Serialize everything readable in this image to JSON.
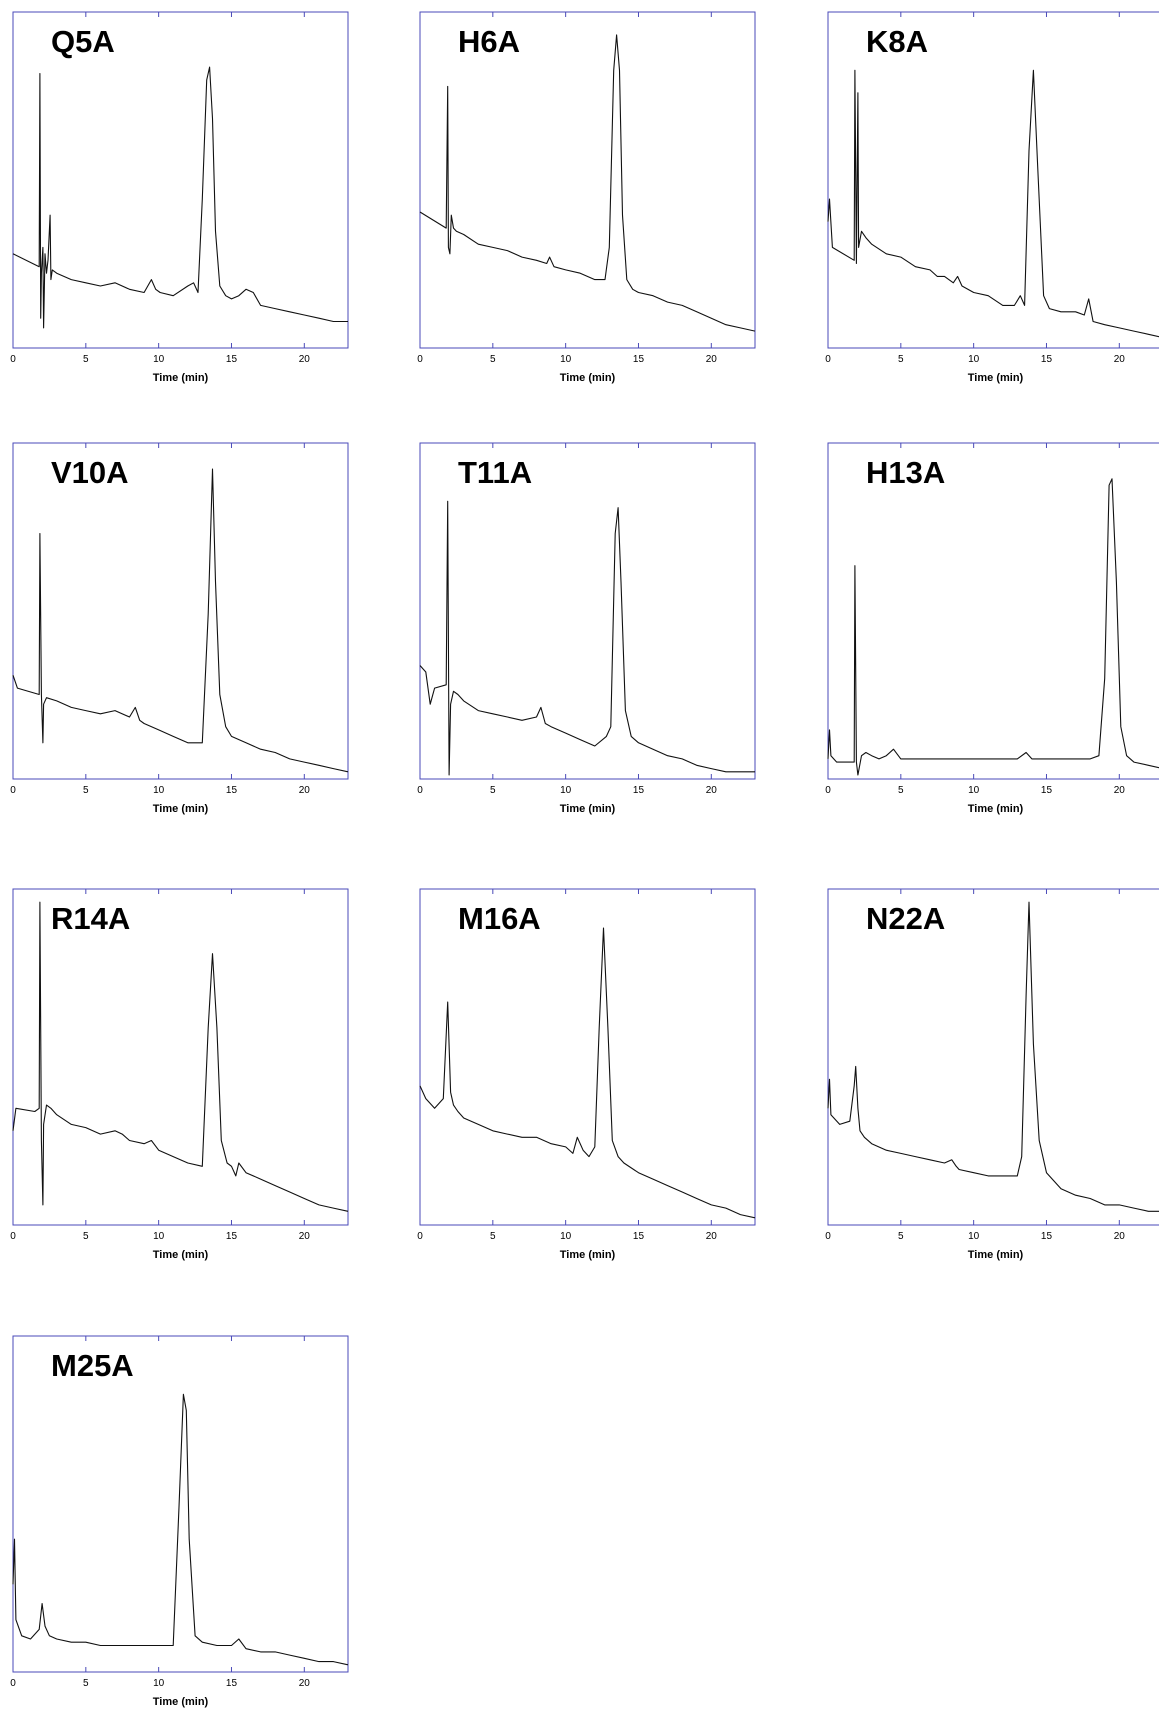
{
  "chart_data": [
    {
      "type": "line",
      "label": "Q5A",
      "xlabel": "Time (min)",
      "xlim": [
        0,
        23
      ],
      "xticks": [
        "0",
        "5",
        "10",
        "15",
        "20"
      ],
      "ylim": [
        0,
        1
      ],
      "series": [
        {
          "x": [
            0,
            1.8,
            1.85,
            1.9,
            1.95,
            2.05,
            2.1,
            2.2,
            2.3,
            2.4,
            2.55,
            2.6,
            2.7,
            3,
            4,
            5,
            6,
            7,
            8,
            9,
            9.5,
            9.8,
            10.1,
            11,
            12,
            12.4,
            12.7,
            13,
            13.3,
            13.5,
            13.7,
            13.9,
            14.2,
            14.6,
            15,
            15.5,
            16,
            16.5,
            17,
            18,
            19,
            20,
            21,
            22,
            23
          ],
          "y": [
            0.28,
            0.24,
            0.84,
            0.08,
            0.22,
            0.3,
            0.05,
            0.28,
            0.22,
            0.26,
            0.4,
            0.2,
            0.23,
            0.22,
            0.2,
            0.19,
            0.18,
            0.19,
            0.17,
            0.16,
            0.2,
            0.17,
            0.16,
            0.15,
            0.18,
            0.19,
            0.16,
            0.45,
            0.82,
            0.86,
            0.7,
            0.35,
            0.18,
            0.15,
            0.14,
            0.15,
            0.17,
            0.16,
            0.12,
            0.11,
            0.1,
            0.09,
            0.08,
            0.07,
            0.07
          ]
        }
      ]
    },
    {
      "type": "line",
      "label": "H6A",
      "xlabel": "Time (min)",
      "xlim": [
        0,
        23
      ],
      "xticks": [
        "0",
        "5",
        "10",
        "15",
        "20"
      ],
      "ylim": [
        0,
        1
      ],
      "series": [
        {
          "x": [
            0,
            1.8,
            1.9,
            1.95,
            2.05,
            2.15,
            2.3,
            2.5,
            3,
            4,
            5,
            6,
            7,
            8,
            8.7,
            8.9,
            9.2,
            10,
            11,
            12,
            12.7,
            13,
            13.3,
            13.5,
            13.7,
            13.9,
            14.2,
            14.6,
            15,
            16,
            17,
            18,
            19,
            20,
            21,
            22,
            23
          ],
          "y": [
            0.41,
            0.36,
            0.8,
            0.3,
            0.28,
            0.4,
            0.36,
            0.35,
            0.34,
            0.31,
            0.3,
            0.29,
            0.27,
            0.26,
            0.25,
            0.27,
            0.24,
            0.23,
            0.22,
            0.2,
            0.2,
            0.3,
            0.85,
            0.96,
            0.85,
            0.4,
            0.2,
            0.17,
            0.16,
            0.15,
            0.13,
            0.12,
            0.1,
            0.08,
            0.06,
            0.05,
            0.04
          ]
        }
      ]
    },
    {
      "type": "line",
      "label": "K8A",
      "xlabel": "Time (min)",
      "xlim": [
        0,
        23
      ],
      "xticks": [
        "0",
        "5",
        "10",
        "15",
        "20"
      ],
      "ylim": [
        0,
        1
      ],
      "series": [
        {
          "x": [
            0,
            0.1,
            0.3,
            1.8,
            1.85,
            1.95,
            2.05,
            2.1,
            2.3,
            2.6,
            3,
            4,
            5,
            6,
            7,
            7.5,
            8,
            8.6,
            8.9,
            9.2,
            10,
            11,
            12,
            12.8,
            13.2,
            13.5,
            13.8,
            14.1,
            14.4,
            14.8,
            15.2,
            16,
            17,
            17.6,
            17.9,
            18.2,
            19,
            20,
            21,
            22,
            23
          ],
          "y": [
            0.38,
            0.45,
            0.3,
            0.26,
            0.85,
            0.25,
            0.78,
            0.3,
            0.35,
            0.33,
            0.31,
            0.28,
            0.27,
            0.24,
            0.23,
            0.21,
            0.21,
            0.19,
            0.21,
            0.18,
            0.16,
            0.15,
            0.12,
            0.12,
            0.15,
            0.12,
            0.6,
            0.85,
            0.55,
            0.15,
            0.11,
            0.1,
            0.1,
            0.09,
            0.14,
            0.07,
            0.06,
            0.05,
            0.04,
            0.03,
            0.02
          ]
        }
      ]
    },
    {
      "type": "line",
      "label": "V10A",
      "xlabel": "Time (min)",
      "xlim": [
        0,
        23
      ],
      "xticks": [
        "0",
        "5",
        "10",
        "15",
        "20"
      ],
      "ylim": [
        0,
        1
      ],
      "series": [
        {
          "x": [
            0,
            0.3,
            1.8,
            1.85,
            1.95,
            2.05,
            2.1,
            2.3,
            3,
            4,
            5,
            6,
            7,
            8,
            8.4,
            8.7,
            9,
            10,
            11,
            12,
            13,
            13.4,
            13.7,
            13.9,
            14.2,
            14.6,
            15,
            16,
            17,
            18,
            19,
            20,
            21,
            22,
            23
          ],
          "y": [
            0.31,
            0.27,
            0.25,
            0.75,
            0.25,
            0.1,
            0.22,
            0.24,
            0.23,
            0.21,
            0.2,
            0.19,
            0.2,
            0.18,
            0.21,
            0.17,
            0.16,
            0.14,
            0.12,
            0.1,
            0.1,
            0.5,
            0.95,
            0.6,
            0.25,
            0.15,
            0.12,
            0.1,
            0.08,
            0.07,
            0.05,
            0.04,
            0.03,
            0.02,
            0.01
          ]
        }
      ]
    },
    {
      "type": "line",
      "label": "T11A",
      "xlabel": "Time (min)",
      "xlim": [
        0,
        23
      ],
      "xticks": [
        "0",
        "5",
        "10",
        "15",
        "20"
      ],
      "ylim": [
        0,
        1
      ],
      "series": [
        {
          "x": [
            0,
            0.4,
            0.7,
            1,
            1.8,
            1.9,
            2,
            2.1,
            2.3,
            2.6,
            3,
            4,
            5,
            6,
            7,
            8,
            8.3,
            8.6,
            9,
            10,
            11,
            12,
            12.8,
            13.1,
            13.4,
            13.6,
            13.8,
            14.1,
            14.5,
            15,
            16,
            17,
            18,
            19,
            20,
            21,
            22,
            23
          ],
          "y": [
            0.34,
            0.32,
            0.22,
            0.27,
            0.28,
            0.85,
            0.0,
            0.22,
            0.26,
            0.25,
            0.23,
            0.2,
            0.19,
            0.18,
            0.17,
            0.18,
            0.21,
            0.16,
            0.15,
            0.13,
            0.11,
            0.09,
            0.12,
            0.15,
            0.75,
            0.83,
            0.6,
            0.2,
            0.12,
            0.1,
            0.08,
            0.06,
            0.05,
            0.03,
            0.02,
            0.01,
            0.01,
            0.01
          ]
        }
      ]
    },
    {
      "type": "line",
      "label": "H13A",
      "xlabel": "Time (min)",
      "xlim": [
        0,
        23
      ],
      "xticks": [
        "0",
        "5",
        "10",
        "15",
        "20"
      ],
      "ylim": [
        0,
        1
      ],
      "series": [
        {
          "x": [
            0,
            0.1,
            0.2,
            0.6,
            1,
            1.8,
            1.85,
            1.95,
            2.05,
            2.3,
            2.6,
            3,
            3.5,
            4,
            4.5,
            5,
            6,
            7,
            8,
            9,
            10,
            11,
            12,
            13,
            13.6,
            14,
            15,
            16,
            17,
            18,
            18.6,
            19,
            19.3,
            19.5,
            19.8,
            20.1,
            20.5,
            21,
            22,
            23
          ],
          "y": [
            0.05,
            0.14,
            0.06,
            0.04,
            0.04,
            0.04,
            0.65,
            0.04,
            0.0,
            0.06,
            0.07,
            0.06,
            0.05,
            0.06,
            0.08,
            0.05,
            0.05,
            0.05,
            0.05,
            0.05,
            0.05,
            0.05,
            0.05,
            0.05,
            0.07,
            0.05,
            0.05,
            0.05,
            0.05,
            0.05,
            0.06,
            0.3,
            0.9,
            0.92,
            0.6,
            0.15,
            0.06,
            0.04,
            0.03,
            0.02
          ]
        }
      ]
    },
    {
      "type": "line",
      "label": "R14A",
      "xlabel": "Time (min)",
      "xlim": [
        0,
        23
      ],
      "xticks": [
        "0",
        "5",
        "10",
        "15",
        "20"
      ],
      "ylim": [
        0,
        1
      ],
      "series": [
        {
          "x": [
            0,
            0.2,
            1.5,
            1.8,
            1.85,
            1.95,
            2.05,
            2.1,
            2.3,
            2.6,
            3,
            4,
            5,
            6,
            7,
            7.5,
            8,
            9,
            9.5,
            10,
            11,
            12,
            13,
            13.4,
            13.7,
            14,
            14.3,
            14.7,
            15,
            15.3,
            15.5,
            16,
            17,
            18,
            19,
            20,
            21,
            22,
            23
          ],
          "y": [
            0.28,
            0.35,
            0.34,
            0.35,
            0.99,
            0.25,
            0.05,
            0.3,
            0.36,
            0.35,
            0.33,
            0.3,
            0.29,
            0.27,
            0.28,
            0.27,
            0.25,
            0.24,
            0.25,
            0.22,
            0.2,
            0.18,
            0.17,
            0.6,
            0.83,
            0.6,
            0.25,
            0.18,
            0.17,
            0.14,
            0.18,
            0.15,
            0.13,
            0.11,
            0.09,
            0.07,
            0.05,
            0.04,
            0.03
          ]
        }
      ]
    },
    {
      "type": "line",
      "label": "M16A",
      "xlabel": "Time (min)",
      "xlim": [
        0,
        23
      ],
      "xticks": [
        "0",
        "5",
        "10",
        "15",
        "20"
      ],
      "ylim": [
        0,
        1
      ],
      "series": [
        {
          "x": [
            0,
            0.4,
            1,
            1.6,
            1.9,
            2.1,
            2.3,
            2.6,
            3,
            4,
            5,
            6,
            7,
            8,
            9,
            10,
            10.5,
            10.8,
            11.2,
            11.6,
            12,
            12.3,
            12.6,
            12.9,
            13.2,
            13.6,
            14,
            15,
            16,
            17,
            18,
            19,
            20,
            21,
            22,
            23
          ],
          "y": [
            0.42,
            0.38,
            0.35,
            0.38,
            0.68,
            0.4,
            0.36,
            0.34,
            0.32,
            0.3,
            0.28,
            0.27,
            0.26,
            0.26,
            0.24,
            0.23,
            0.21,
            0.26,
            0.22,
            0.2,
            0.23,
            0.6,
            0.91,
            0.6,
            0.25,
            0.2,
            0.18,
            0.15,
            0.13,
            0.11,
            0.09,
            0.07,
            0.05,
            0.04,
            0.02,
            0.01
          ]
        }
      ]
    },
    {
      "type": "line",
      "label": "N22A",
      "xlabel": "Time (min)",
      "xlim": [
        0,
        23
      ],
      "xticks": [
        "0",
        "5",
        "10",
        "15",
        "20"
      ],
      "ylim": [
        0,
        1
      ],
      "series": [
        {
          "x": [
            0,
            0.1,
            0.2,
            0.8,
            1.5,
            1.8,
            1.9,
            2.05,
            2.2,
            2.5,
            3,
            4,
            5,
            6,
            7,
            8,
            8.5,
            8.8,
            9,
            10,
            11,
            12,
            13,
            13.3,
            13.6,
            13.8,
            14.1,
            14.5,
            15,
            16,
            17,
            18,
            19,
            20,
            21,
            22,
            23
          ],
          "y": [
            0.35,
            0.44,
            0.33,
            0.3,
            0.31,
            0.42,
            0.48,
            0.35,
            0.28,
            0.26,
            0.24,
            0.22,
            0.21,
            0.2,
            0.19,
            0.18,
            0.19,
            0.17,
            0.16,
            0.15,
            0.14,
            0.14,
            0.14,
            0.2,
            0.7,
            0.99,
            0.55,
            0.25,
            0.15,
            0.1,
            0.08,
            0.07,
            0.05,
            0.05,
            0.04,
            0.03,
            0.03
          ]
        }
      ]
    },
    {
      "type": "line",
      "label": "M25A",
      "xlabel": "Time (min)",
      "xlim": [
        0,
        23
      ],
      "xticks": [
        "0",
        "5",
        "10",
        "15",
        "20"
      ],
      "ylim": [
        0,
        1
      ],
      "series": [
        {
          "x": [
            0,
            0.1,
            0.2,
            0.6,
            1.2,
            1.8,
            2,
            2.2,
            2.5,
            3,
            4,
            5,
            6,
            7,
            8,
            9,
            10,
            11,
            11.4,
            11.7,
            11.9,
            12.1,
            12.5,
            13,
            14,
            15,
            15.5,
            16,
            17,
            18,
            19,
            20,
            21,
            22,
            23
          ],
          "y": [
            0.26,
            0.4,
            0.15,
            0.1,
            0.09,
            0.12,
            0.2,
            0.13,
            0.1,
            0.09,
            0.08,
            0.08,
            0.07,
            0.07,
            0.07,
            0.07,
            0.07,
            0.07,
            0.5,
            0.85,
            0.8,
            0.4,
            0.1,
            0.08,
            0.07,
            0.07,
            0.09,
            0.06,
            0.05,
            0.05,
            0.04,
            0.03,
            0.02,
            0.02,
            0.01
          ]
        }
      ]
    }
  ]
}
